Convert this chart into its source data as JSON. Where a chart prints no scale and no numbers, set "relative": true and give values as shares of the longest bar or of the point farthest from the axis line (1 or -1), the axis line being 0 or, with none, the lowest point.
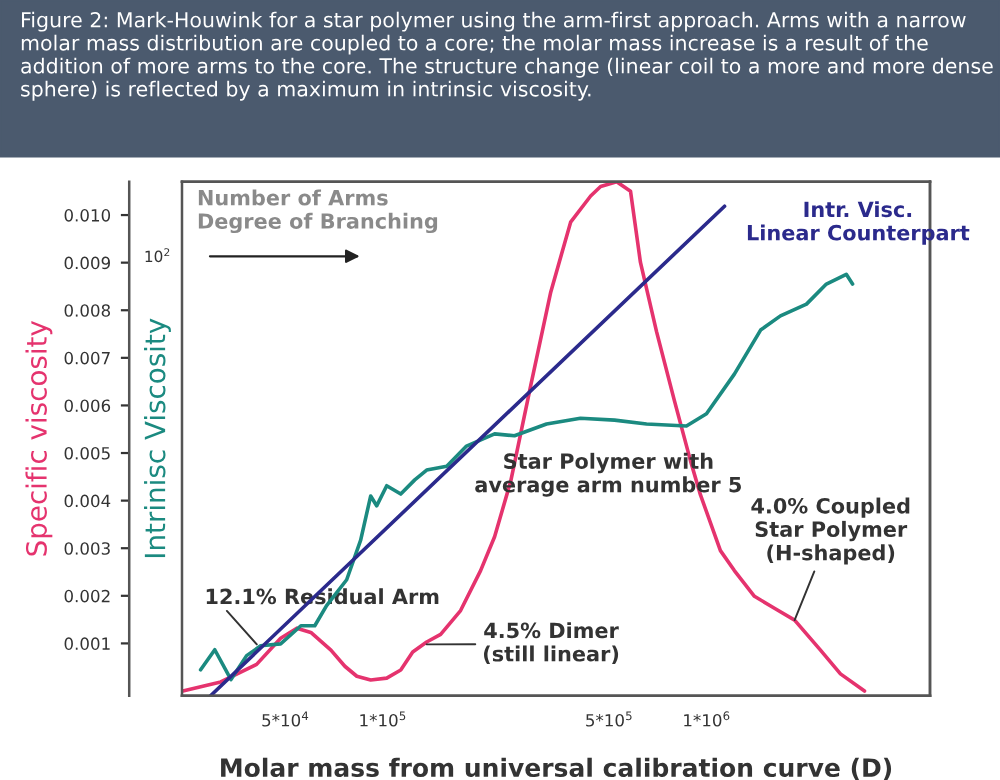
{
  "chart_data": [
    {
      "type": "line",
      "title": "Figure 2: Mark-Houwink for a star polymer using the arm-first approach. Arms with a narrow molar mass distribution are coupled to a core; the molar mass increase is a result of the addition of more arms to the core. The structure change (linear coil to a more and more dense sphere) is reflected by a maximum in intrinsic viscosity.",
      "xlabel": "Molar mass from universal calibration curve (D)",
      "ylabel": "Specific viscosity",
      "log": "x",
      "xlim": [
        24000,
        4900000
      ],
      "xticks": [
        {
          "value": 50000,
          "label": "5*10$^{4}$"
        },
        {
          "value": 100000,
          "label": "1*10$^{5}$"
        },
        {
          "value": 500000,
          "label": "5*10$^{5}$"
        },
        {
          "value": 1000000,
          "label": "1*10$^{6}$"
        }
      ],
      "ylim": [
        -0.0001,
        0.0107
      ],
      "yticks": [
        0.001,
        0.002,
        0.003,
        0.004,
        0.005,
        0.006,
        0.007,
        0.008,
        0.009,
        {
          "value": 0.01,
          "label": "0.010"
        }
      ],
      "series": [
        {
          "color": "#e5336e",
          "x": [
            24150,
            31600,
            40800,
            48400,
            54300,
            60000,
            69200,
            76400,
            83200,
            91800,
            102900,
            113700,
            123800,
            136700,
            151000,
            174000,
            200600,
            221600,
            248600,
            286600,
            330300,
            380500,
            438700,
            471000,
            527800,
            582600,
            625000,
            701000,
            796600,
            893000,
            958000,
            1104000,
            1219000,
            1406000,
            1621000,
            1871000,
            2249000,
            2592000,
            3076000
          ],
          "values": [
            0.0,
            0.00019,
            0.00056,
            0.00111,
            0.00132,
            0.00123,
            0.00086,
            0.00052,
            0.00031,
            0.00023,
            0.00027,
            0.00044,
            0.00082,
            0.00103,
            0.00119,
            0.00169,
            0.00253,
            0.00324,
            0.00441,
            0.00642,
            0.00838,
            0.00985,
            0.0104,
            0.0106,
            0.0107,
            0.0105,
            0.00901,
            0.00755,
            0.00609,
            0.00483,
            0.00412,
            0.00295,
            0.00253,
            0.00199,
            0.00174,
            0.00149,
            0.00086,
            0.00036,
            0.0
          ]
        }
      ],
      "annotations": [
        "12.1% Residual Arm",
        {
          "text": "4.5% Dimer\n(still linear)",
          "x": 136700,
          "y": 0.00098
        },
        "Star Polymer with\naverage arm number 5",
        {
          "text": "4.0% Coupled\nStar Polymer\n(H-shaped)",
          "x": 1871000,
          "y": 0.00149
        },
        "Number of Arms\nDegree of Branching"
      ],
      "legend": false,
      "grid": false,
      "marker": "none",
      "line_style": "solid"
    },
    {
      "type": "line",
      "ylabel": "Intrinisc Viscosity",
      "relative": true,
      "log": "x",
      "xlim": [
        24000,
        4900000
      ],
      "series": [
        {
          "color": "#1b8a80",
          "x": [
            27400,
            30300,
            34000,
            38000,
            42000,
            48400,
            55900,
            61700,
            67100,
            77400,
            85500,
            91800,
            95800,
            102900,
            113700,
            125600,
            136700,
            157700,
            181500,
            221600,
            255300,
            320600,
            408000,
            520000,
            653000,
            867000,
            1000000,
            1219000,
            1469000,
            1692000,
            2036000,
            2345000,
            2702000,
            2825000
          ],
          "values": [
            0.053,
            0.094,
            0.033,
            0.082,
            0.102,
            0.106,
            0.143,
            0.143,
            0.184,
            0.237,
            0.318,
            0.408,
            0.388,
            0.429,
            0.412,
            0.441,
            0.461,
            0.469,
            0.51,
            0.535,
            0.531,
            0.555,
            0.567,
            0.563,
            0.555,
            0.551,
            0.576,
            0.657,
            0.747,
            0.776,
            0.8,
            0.841,
            0.861,
            0.841
          ]
        },
        {
          "name": "Intr. Visc.\nLinear Counterpart",
          "color": "#2b2a8c",
          "x": [
            29400,
            1137000
          ],
          "values": [
            0.0,
            1.0
          ]
        }
      ],
      "annotations": [
        "10$^{2}$"
      ],
      "legend": false,
      "grid": false,
      "marker": "none",
      "line_style": "solid"
    }
  ]
}
